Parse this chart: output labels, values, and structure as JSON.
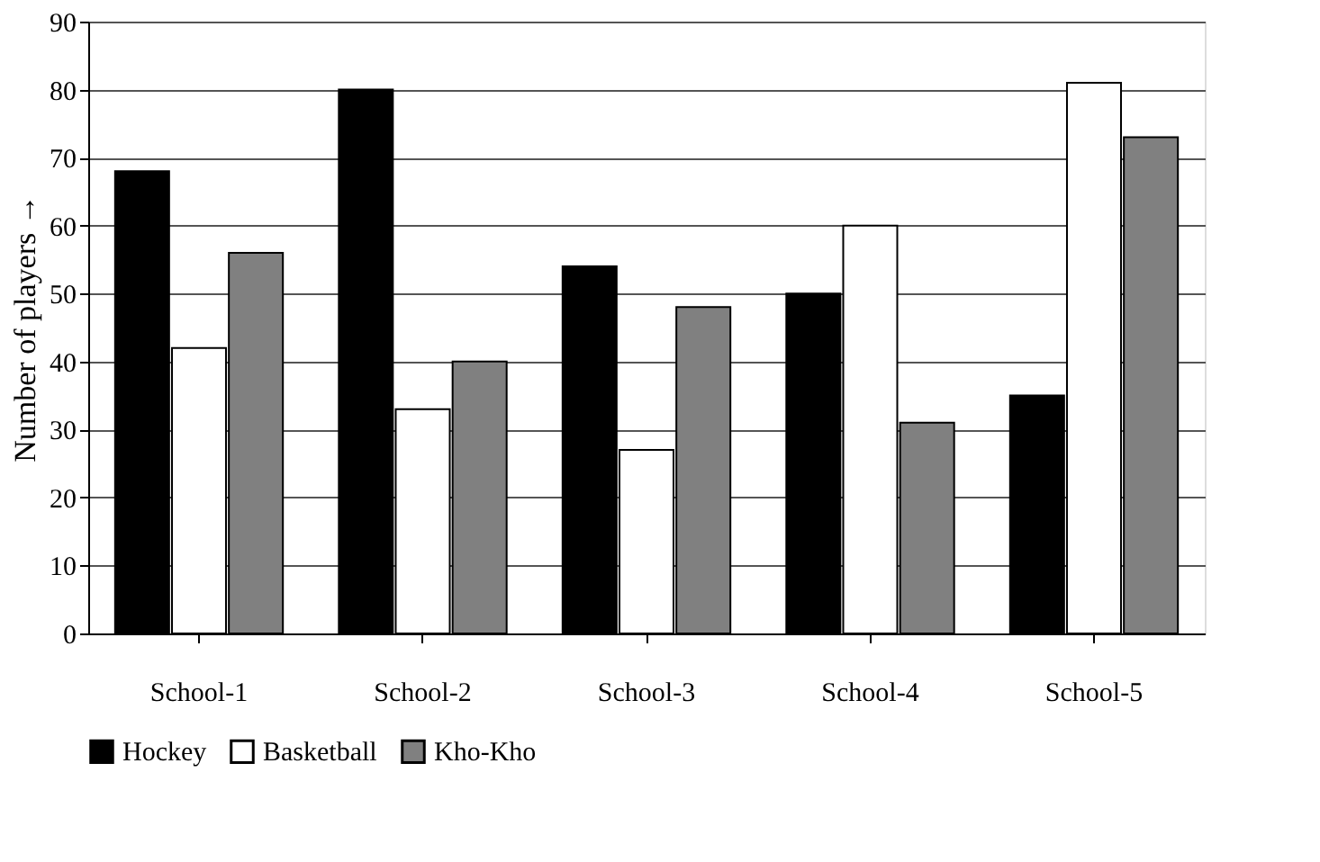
{
  "chart_data": {
    "type": "bar",
    "ylabel": "Number of players →",
    "categories": [
      "School-1",
      "School-2",
      "School-3",
      "School-4",
      "School-5"
    ],
    "series": [
      {
        "name": "Hockey",
        "color": "#000000",
        "values": [
          68,
          80,
          54,
          50,
          35
        ]
      },
      {
        "name": "Basketball",
        "color": "#ffffff",
        "values": [
          42,
          33,
          27,
          60,
          81
        ]
      },
      {
        "name": "Kho-Kho",
        "color": "#808080",
        "values": [
          56,
          40,
          48,
          31,
          73
        ]
      }
    ],
    "ylim": [
      0,
      90
    ],
    "yticks": [
      0,
      10,
      20,
      30,
      40,
      50,
      60,
      70,
      80,
      90
    ],
    "grid": "y",
    "legend": "bottom"
  }
}
